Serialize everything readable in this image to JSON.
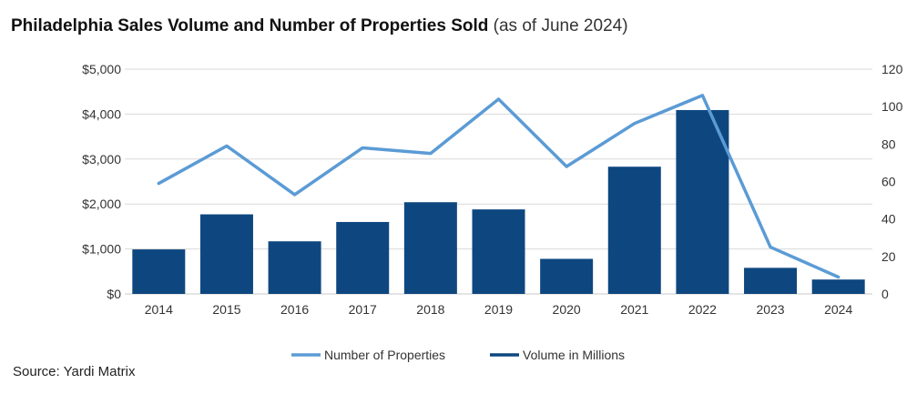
{
  "chart_data": {
    "type": "bar",
    "title": "Philadelphia Sales Volume and Number of Properties Sold",
    "subtitle": "(as of June 2024)",
    "categories": [
      "2014",
      "2015",
      "2016",
      "2017",
      "2018",
      "2019",
      "2020",
      "2021",
      "2022",
      "2023",
      "2024"
    ],
    "series": [
      {
        "name": "Volume in Millions",
        "type": "bar",
        "axis": "left",
        "values": [
          990,
          1770,
          1170,
          1600,
          2040,
          1880,
          780,
          2830,
          4090,
          580,
          320
        ],
        "color": "#0e4780"
      },
      {
        "name": "Number of Properties",
        "type": "line",
        "axis": "right",
        "values": [
          59,
          79,
          53,
          78,
          75,
          104,
          68,
          91,
          106,
          25,
          9
        ],
        "color": "#5b9bd5"
      }
    ],
    "y_left": {
      "ylim": [
        0,
        5000
      ],
      "ticks": [
        "$0",
        "$1,000",
        "$2,000",
        "$3,000",
        "$4,000",
        "$5,000"
      ]
    },
    "y_right": {
      "ylim": [
        0,
        120
      ],
      "ticks": [
        "0",
        "20",
        "40",
        "60",
        "80",
        "100",
        "120"
      ]
    },
    "grid": true,
    "legend_position": "bottom"
  },
  "source": "Source: Yardi Matrix"
}
